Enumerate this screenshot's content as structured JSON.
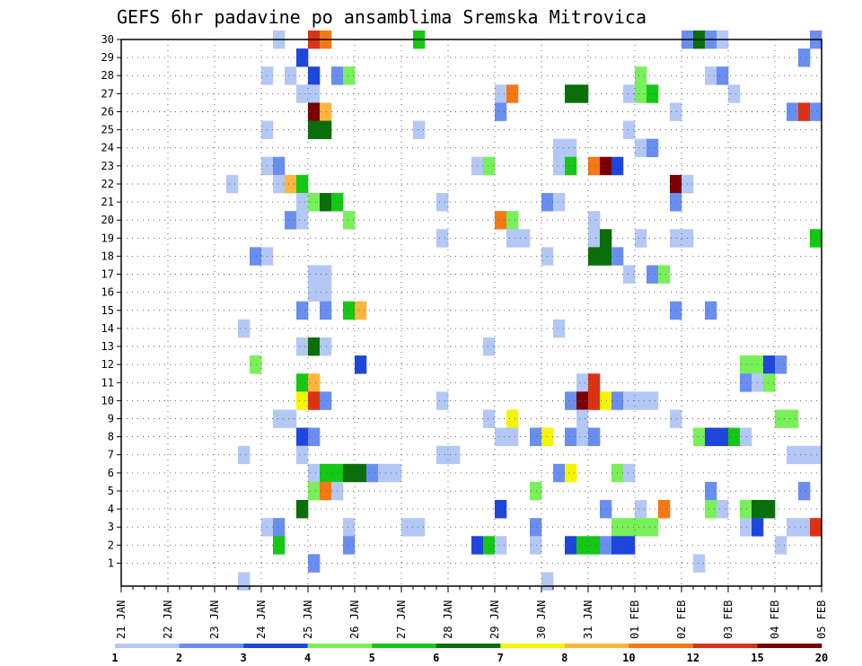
{
  "chart_data": {
    "type": "heatmap",
    "title": "GEFS 6hr padavine po ansamblima Sremska Mitrovica",
    "x_tick_labels": [
      "21 JAN",
      "22 JAN",
      "23 JAN",
      "24 JAN",
      "25 JAN",
      "26 JAN",
      "27 JAN",
      "28 JAN",
      "29 JAN",
      "30 JAN",
      "31 JAN",
      "01 FEB",
      "02 FEB",
      "03 FEB",
      "04 FEB",
      "05 FEB"
    ],
    "y_tick_labels": [
      "1",
      "2",
      "3",
      "4",
      "5",
      "6",
      "7",
      "8",
      "9",
      "10",
      "11",
      "12",
      "13",
      "14",
      "15",
      "16",
      "17",
      "18",
      "19",
      "20",
      "21",
      "22",
      "23",
      "24",
      "25",
      "26",
      "27",
      "28",
      "29",
      "30"
    ],
    "xlim": [
      0,
      60
    ],
    "ylim": [
      0,
      30
    ],
    "x_steps_per_day": 4,
    "grid": true,
    "colorbar": {
      "labels": [
        "1",
        "2",
        "3",
        "4",
        "5",
        "6",
        "7",
        "8",
        "10",
        "12",
        "15",
        "20"
      ],
      "colors": [
        "#b4c8f5",
        "#6a8ef0",
        "#1e46dc",
        "#78f05a",
        "#14c814",
        "#0a6e0a",
        "#f5f500",
        "#ffb43c",
        "#f57814",
        "#dc3214",
        "#780000"
      ]
    },
    "cells": [
      [
        13,
        30,
        1
      ],
      [
        16,
        30,
        10
      ],
      [
        17,
        30,
        9
      ],
      [
        25,
        30,
        5
      ],
      [
        48,
        30,
        2
      ],
      [
        49,
        30,
        6
      ],
      [
        50,
        30,
        2
      ],
      [
        51,
        30,
        1
      ],
      [
        59,
        30,
        2
      ],
      [
        15,
        29,
        3
      ],
      [
        58,
        29,
        2
      ],
      [
        12,
        28,
        1
      ],
      [
        14,
        28,
        1
      ],
      [
        16,
        28,
        3
      ],
      [
        18,
        28,
        2
      ],
      [
        19,
        28,
        4
      ],
      [
        44,
        28,
        4
      ],
      [
        50,
        28,
        1
      ],
      [
        51,
        28,
        2
      ],
      [
        15,
        27,
        1
      ],
      [
        16,
        27,
        1
      ],
      [
        32,
        27,
        1
      ],
      [
        33,
        27,
        9
      ],
      [
        38,
        27,
        6
      ],
      [
        39,
        27,
        6
      ],
      [
        43,
        27,
        1
      ],
      [
        44,
        27,
        4
      ],
      [
        45,
        27,
        5
      ],
      [
        52,
        27,
        1
      ],
      [
        16,
        26,
        11
      ],
      [
        17,
        26,
        8
      ],
      [
        32,
        26,
        2
      ],
      [
        47,
        26,
        1
      ],
      [
        57,
        26,
        2
      ],
      [
        58,
        26,
        10
      ],
      [
        59,
        26,
        2
      ],
      [
        12,
        25,
        1
      ],
      [
        16,
        25,
        6
      ],
      [
        17,
        25,
        6
      ],
      [
        25,
        25,
        1
      ],
      [
        43,
        25,
        1
      ],
      [
        37,
        24,
        1
      ],
      [
        38,
        24,
        1
      ],
      [
        44,
        24,
        1
      ],
      [
        45,
        24,
        2
      ],
      [
        12,
        23,
        1
      ],
      [
        13,
        23,
        2
      ],
      [
        30,
        23,
        1
      ],
      [
        31,
        23,
        4
      ],
      [
        37,
        23,
        1
      ],
      [
        38,
        23,
        5
      ],
      [
        40,
        23,
        9
      ],
      [
        41,
        23,
        11
      ],
      [
        42,
        23,
        3
      ],
      [
        9,
        22,
        1
      ],
      [
        13,
        22,
        1
      ],
      [
        14,
        22,
        8
      ],
      [
        15,
        22,
        5
      ],
      [
        47,
        22,
        11
      ],
      [
        48,
        22,
        1
      ],
      [
        15,
        21,
        1
      ],
      [
        16,
        21,
        4
      ],
      [
        17,
        21,
        6
      ],
      [
        18,
        21,
        5
      ],
      [
        27,
        21,
        1
      ],
      [
        36,
        21,
        2
      ],
      [
        37,
        21,
        1
      ],
      [
        47,
        21,
        2
      ],
      [
        14,
        20,
        2
      ],
      [
        15,
        20,
        1
      ],
      [
        19,
        20,
        4
      ],
      [
        32,
        20,
        9
      ],
      [
        33,
        20,
        4
      ],
      [
        40,
        20,
        1
      ],
      [
        27,
        19,
        1
      ],
      [
        33,
        19,
        1
      ],
      [
        34,
        19,
        1
      ],
      [
        40,
        19,
        1
      ],
      [
        41,
        19,
        6
      ],
      [
        44,
        19,
        1
      ],
      [
        47,
        19,
        1
      ],
      [
        48,
        19,
        1
      ],
      [
        59,
        19,
        5
      ],
      [
        11,
        18,
        2
      ],
      [
        12,
        18,
        1
      ],
      [
        36,
        18,
        1
      ],
      [
        40,
        18,
        6
      ],
      [
        41,
        18,
        6
      ],
      [
        42,
        18,
        2
      ],
      [
        16,
        17,
        1
      ],
      [
        17,
        17,
        1
      ],
      [
        43,
        17,
        1
      ],
      [
        45,
        17,
        2
      ],
      [
        46,
        17,
        4
      ],
      [
        16,
        16,
        1
      ],
      [
        17,
        16,
        1
      ],
      [
        15,
        15,
        2
      ],
      [
        17,
        15,
        2
      ],
      [
        19,
        15,
        5
      ],
      [
        20,
        15,
        8
      ],
      [
        47,
        15,
        2
      ],
      [
        50,
        15,
        2
      ],
      [
        10,
        14,
        1
      ],
      [
        37,
        14,
        1
      ],
      [
        15,
        13,
        1
      ],
      [
        16,
        13,
        6
      ],
      [
        17,
        13,
        1
      ],
      [
        31,
        13,
        1
      ],
      [
        11,
        12,
        4
      ],
      [
        20,
        12,
        3
      ],
      [
        53,
        12,
        4
      ],
      [
        54,
        12,
        4
      ],
      [
        55,
        12,
        3
      ],
      [
        56,
        12,
        2
      ],
      [
        15,
        11,
        5
      ],
      [
        16,
        11,
        8
      ],
      [
        39,
        11,
        1
      ],
      [
        40,
        11,
        10
      ],
      [
        53,
        11,
        2
      ],
      [
        54,
        11,
        1
      ],
      [
        55,
        11,
        4
      ],
      [
        15,
        10,
        7
      ],
      [
        16,
        10,
        10
      ],
      [
        17,
        10,
        2
      ],
      [
        27,
        10,
        1
      ],
      [
        38,
        10,
        2
      ],
      [
        39,
        10,
        11
      ],
      [
        40,
        10,
        10
      ],
      [
        41,
        10,
        7
      ],
      [
        42,
        10,
        2
      ],
      [
        43,
        10,
        1
      ],
      [
        44,
        10,
        1
      ],
      [
        45,
        10,
        1
      ],
      [
        13,
        9,
        1
      ],
      [
        14,
        9,
        1
      ],
      [
        31,
        9,
        1
      ],
      [
        33,
        9,
        7
      ],
      [
        39,
        9,
        1
      ],
      [
        47,
        9,
        1
      ],
      [
        56,
        9,
        4
      ],
      [
        57,
        9,
        4
      ],
      [
        15,
        8,
        3
      ],
      [
        16,
        8,
        2
      ],
      [
        32,
        8,
        1
      ],
      [
        33,
        8,
        1
      ],
      [
        35,
        8,
        2
      ],
      [
        36,
        8,
        7
      ],
      [
        38,
        8,
        2
      ],
      [
        39,
        8,
        1
      ],
      [
        40,
        8,
        2
      ],
      [
        49,
        8,
        4
      ],
      [
        50,
        8,
        3
      ],
      [
        51,
        8,
        3
      ],
      [
        52,
        8,
        5
      ],
      [
        53,
        8,
        1
      ],
      [
        10,
        7,
        1
      ],
      [
        15,
        7,
        1
      ],
      [
        27,
        7,
        1
      ],
      [
        28,
        7,
        1
      ],
      [
        57,
        7,
        1
      ],
      [
        58,
        7,
        1
      ],
      [
        59,
        7,
        1
      ],
      [
        16,
        6,
        1
      ],
      [
        17,
        6,
        5
      ],
      [
        18,
        6,
        5
      ],
      [
        19,
        6,
        6
      ],
      [
        20,
        6,
        6
      ],
      [
        21,
        6,
        2
      ],
      [
        22,
        6,
        1
      ],
      [
        23,
        6,
        1
      ],
      [
        37,
        6,
        2
      ],
      [
        38,
        6,
        7
      ],
      [
        42,
        6,
        4
      ],
      [
        43,
        6,
        1
      ],
      [
        16,
        5,
        4
      ],
      [
        17,
        5,
        9
      ],
      [
        18,
        5,
        1
      ],
      [
        35,
        5,
        4
      ],
      [
        50,
        5,
        2
      ],
      [
        58,
        5,
        2
      ],
      [
        15,
        4,
        6
      ],
      [
        32,
        4,
        3
      ],
      [
        41,
        4,
        2
      ],
      [
        44,
        4,
        1
      ],
      [
        46,
        4,
        9
      ],
      [
        50,
        4,
        4
      ],
      [
        51,
        4,
        1
      ],
      [
        53,
        4,
        4
      ],
      [
        54,
        4,
        6
      ],
      [
        55,
        4,
        6
      ],
      [
        12,
        3,
        1
      ],
      [
        13,
        3,
        2
      ],
      [
        19,
        3,
        1
      ],
      [
        24,
        3,
        1
      ],
      [
        25,
        3,
        1
      ],
      [
        35,
        3,
        2
      ],
      [
        42,
        3,
        4
      ],
      [
        43,
        3,
        4
      ],
      [
        44,
        3,
        4
      ],
      [
        45,
        3,
        4
      ],
      [
        53,
        3,
        1
      ],
      [
        54,
        3,
        3
      ],
      [
        57,
        3,
        1
      ],
      [
        58,
        3,
        1
      ],
      [
        59,
        3,
        10
      ],
      [
        13,
        2,
        5
      ],
      [
        19,
        2,
        2
      ],
      [
        30,
        2,
        3
      ],
      [
        31,
        2,
        5
      ],
      [
        32,
        2,
        1
      ],
      [
        35,
        2,
        1
      ],
      [
        38,
        2,
        3
      ],
      [
        39,
        2,
        5
      ],
      [
        40,
        2,
        5
      ],
      [
        41,
        2,
        2
      ],
      [
        42,
        2,
        3
      ],
      [
        43,
        2,
        3
      ],
      [
        56,
        2,
        1
      ],
      [
        16,
        1,
        2
      ],
      [
        49,
        1,
        1
      ],
      [
        10,
        0,
        1
      ],
      [
        36,
        0,
        1
      ]
    ]
  }
}
